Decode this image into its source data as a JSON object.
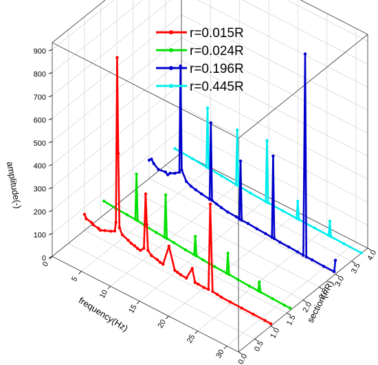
{
  "chart_data": {
    "type": "line",
    "variant": "3d-waterfall",
    "title": "",
    "xlabel": "frequency(Hz)",
    "ylabel": "section(r/R)",
    "zlabel": "amplitude(-)",
    "x_ticks": [
      "0",
      "5",
      "10",
      "15",
      "20",
      "25",
      "30"
    ],
    "y_ticks": [
      "0.0",
      "0.5",
      "1.0",
      "1.5",
      "2.0",
      "2.5",
      "3.0",
      "3.5",
      "4.0"
    ],
    "z_ticks": [
      "0",
      "100",
      "200",
      "300",
      "400",
      "500",
      "600",
      "700",
      "800",
      "900"
    ],
    "xlim": [
      0,
      32
    ],
    "ylim": [
      0,
      4
    ],
    "zlim": [
      0,
      930
    ],
    "grid": true,
    "legend_position": "top-center",
    "series": [
      {
        "name": "r=0.015R",
        "section": 1,
        "color": "#ff0000",
        "x": [
          0,
          0.3,
          1.2,
          1.5,
          2.4,
          2.7,
          3.5,
          4.5,
          5.2,
          5.4,
          5.6,
          5.8,
          6.0,
          6.5,
          7.5,
          8.0,
          8.6,
          9.1,
          9.6,
          10.2,
          10.5,
          10.7,
          10.9,
          11.5,
          12.5,
          13.0,
          13.5,
          14.5,
          15.5,
          16.0,
          16.5,
          17.5,
          18.5,
          19.0,
          19.5,
          20.5,
          21.3,
          21.6,
          22.0,
          22.8,
          23.5,
          25.0,
          27.0,
          29.0,
          31.0,
          32.0
        ],
        "y": [
          70,
          55,
          50,
          44,
          40,
          36,
          45,
          55,
          65,
          105,
          825,
          410,
          90,
          65,
          55,
          48,
          45,
          40,
          38,
          55,
          295,
          165,
          55,
          40,
          35,
          30,
          28,
          120,
          28,
          25,
          22,
          20,
          75,
          20,
          20,
          18,
          20,
          395,
          20,
          18,
          15,
          14,
          13,
          12,
          11,
          10
        ]
      },
      {
        "name": "r=0.024R",
        "section": 1.6,
        "color": "#00e000",
        "x": [
          0,
          2,
          4,
          5.4,
          5.6,
          5.8,
          7,
          9,
          10.4,
          10.6,
          10.8,
          12,
          14,
          15.5,
          15.7,
          15.9,
          17,
          19,
          21.1,
          21.3,
          21.5,
          23,
          25,
          26.5,
          26.7,
          26.9,
          29,
          31,
          32
        ],
        "y": [
          60,
          55,
          52,
          50,
          250,
          50,
          45,
          40,
          38,
          225,
          38,
          35,
          30,
          28,
          110,
          28,
          25,
          22,
          20,
          110,
          20,
          18,
          15,
          14,
          55,
          14,
          12,
          10,
          10
        ]
      },
      {
        "name": "r=0.196R",
        "section": 3.0,
        "color": "#0000cc",
        "x": [
          0,
          0.4,
          0.8,
          1.6,
          2.8,
          3.2,
          3.6,
          4.4,
          5.2,
          5.4,
          5.6,
          6.4,
          7.2,
          8.0,
          9.0,
          10.4,
          10.6,
          10.8,
          11.6,
          12.4,
          13.5,
          15.0,
          15.5,
          15.7,
          15.9,
          17.0,
          18.5,
          20.0,
          21.1,
          21.3,
          21.5,
          22.5,
          24.0,
          25.5,
          26.5,
          26.8,
          27.0,
          28.0,
          30.0,
          31.8,
          32.0
        ],
        "y": [
          80,
          90,
          75,
          60,
          65,
          58,
          70,
          80,
          95,
          560,
          110,
          70,
          60,
          55,
          50,
          45,
          380,
          45,
          40,
          35,
          30,
          28,
          25,
          280,
          25,
          25,
          22,
          20,
          18,
          375,
          18,
          15,
          14,
          12,
          10,
          890,
          10,
          10,
          8,
          8,
          60
        ]
      },
      {
        "name": "r=0.445R",
        "section": 3.8,
        "color": "#00eeee",
        "x": [
          0,
          3,
          5.4,
          5.6,
          5.8,
          8,
          10.5,
          10.7,
          10.9,
          13,
          15.6,
          15.8,
          16.0,
          18.5,
          20.9,
          21.1,
          21.3,
          24,
          26.4,
          26.6,
          26.8,
          29,
          32
        ],
        "y": [
          40,
          35,
          30,
          290,
          30,
          25,
          20,
          260,
          20,
          15,
          12,
          280,
          12,
          10,
          8,
          85,
          8,
          6,
          5,
          70,
          5,
          3,
          2
        ]
      }
    ]
  }
}
